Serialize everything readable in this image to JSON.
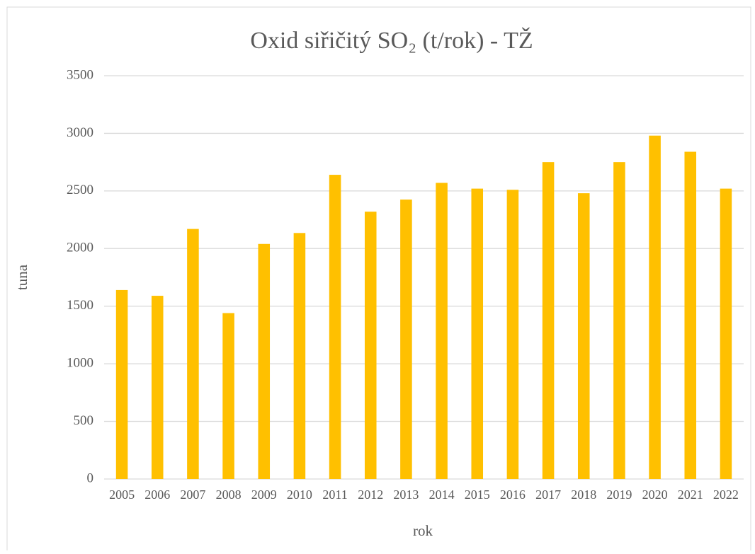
{
  "chart_data": {
    "type": "bar",
    "title": "Oxid siřičitý SO₂ (t/rok) - TŽ",
    "x_label": "rok",
    "y_label": "tuna",
    "categories": [
      "2005",
      "2006",
      "2007",
      "2008",
      "2009",
      "2010",
      "2011",
      "2012",
      "2013",
      "2014",
      "2015",
      "2016",
      "2017",
      "2018",
      "2019",
      "2020",
      "2021",
      "2022"
    ],
    "values": [
      1640,
      1590,
      2170,
      1440,
      2040,
      2135,
      2640,
      2320,
      2425,
      2570,
      2520,
      2510,
      2750,
      2480,
      2750,
      2980,
      2840,
      2520
    ],
    "color": "#ffc000",
    "ylim": [
      0,
      3500
    ],
    "yticks": [
      0,
      500,
      1000,
      1500,
      2000,
      2500,
      3000,
      3500
    ],
    "grid": true
  }
}
